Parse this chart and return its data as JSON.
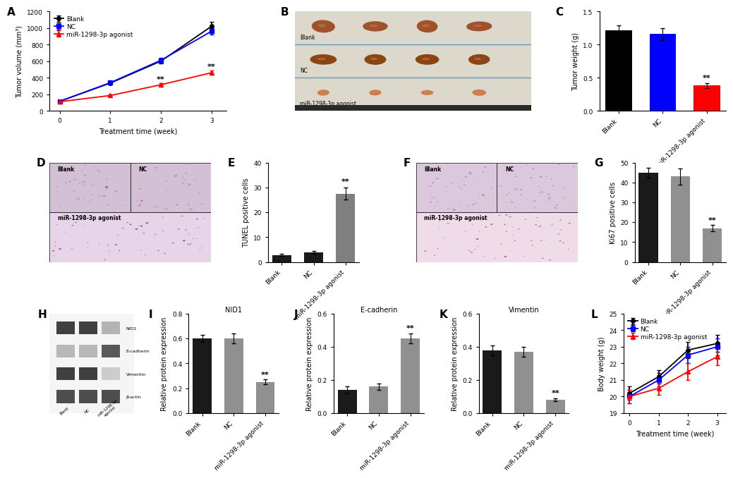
{
  "panel_A": {
    "xlabel": "Treatment time (week)",
    "ylabel": "Tumor volume (mm³)",
    "weeks": [
      0,
      1,
      2,
      3
    ],
    "blank_mean": [
      115,
      335,
      600,
      1020
    ],
    "blank_err": [
      10,
      20,
      25,
      50
    ],
    "NC_mean": [
      115,
      340,
      610,
      960
    ],
    "NC_err": [
      10,
      18,
      30,
      40
    ],
    "mir_mean": [
      110,
      185,
      315,
      460
    ],
    "mir_err": [
      8,
      15,
      20,
      25
    ],
    "ylim": [
      0,
      1200
    ],
    "yticks": [
      0,
      200,
      400,
      600,
      800,
      1000,
      1200
    ],
    "blank_color": "#000000",
    "NC_color": "#0000FF",
    "mir_color": "#FF0000"
  },
  "panel_C": {
    "ylabel": "Tumor weight (g)",
    "categories": [
      "Blank",
      "NC",
      "miR-1298-3p agonist"
    ],
    "means": [
      1.22,
      1.16,
      0.38
    ],
    "errs": [
      0.07,
      0.09,
      0.04
    ],
    "colors": [
      "#000000",
      "#0000FF",
      "#FF0000"
    ],
    "ylim": [
      0,
      1.5
    ],
    "yticks": [
      0.0,
      0.5,
      1.0,
      1.5
    ]
  },
  "panel_E": {
    "ylabel": "TUNEL positive cells",
    "categories": [
      "Blank",
      "NC",
      "miR-1298-3p agonist"
    ],
    "means": [
      2.8,
      3.8,
      27.5
    ],
    "errs": [
      0.5,
      0.6,
      2.5
    ],
    "colors": [
      "#1a1a1a",
      "#1a1a1a",
      "#808080"
    ],
    "ylim": [
      0,
      40
    ],
    "yticks": [
      0,
      10,
      20,
      30,
      40
    ]
  },
  "panel_G": {
    "ylabel": "Ki67 positive cells",
    "categories": [
      "Blank",
      "NC",
      "miR-1298-3p agonist"
    ],
    "means": [
      45,
      43,
      17
    ],
    "errs": [
      2.5,
      4.0,
      1.5
    ],
    "colors": [
      "#1a1a1a",
      "#909090",
      "#909090"
    ],
    "ylim": [
      0,
      50
    ],
    "yticks": [
      0,
      10,
      20,
      30,
      40,
      50
    ]
  },
  "panel_I": {
    "inner_title": "NID1",
    "ylabel": "Relative protein expression",
    "categories": [
      "Blank",
      "NC",
      "miR-1298-3p agonist"
    ],
    "means": [
      0.6,
      0.6,
      0.25
    ],
    "errs": [
      0.03,
      0.04,
      0.02
    ],
    "colors": [
      "#1a1a1a",
      "#909090",
      "#909090"
    ],
    "ylim": [
      0,
      0.8
    ],
    "yticks": [
      0.0,
      0.2,
      0.4,
      0.6,
      0.8
    ]
  },
  "panel_J": {
    "inner_title": "E-cadherin",
    "ylabel": "Relative protein expression",
    "categories": [
      "Blank",
      "NC",
      "miR-1298-3p agonist"
    ],
    "means": [
      0.14,
      0.16,
      0.45
    ],
    "errs": [
      0.02,
      0.02,
      0.03
    ],
    "colors": [
      "#1a1a1a",
      "#909090",
      "#909090"
    ],
    "ylim": [
      0,
      0.6
    ],
    "yticks": [
      0.0,
      0.2,
      0.4,
      0.6
    ]
  },
  "panel_K": {
    "inner_title": "Vimentin",
    "ylabel": "Relative protein expression",
    "categories": [
      "Blank",
      "NC",
      "miR-1298-3p agonist"
    ],
    "means": [
      0.38,
      0.37,
      0.08
    ],
    "errs": [
      0.03,
      0.03,
      0.01
    ],
    "colors": [
      "#1a1a1a",
      "#909090",
      "#909090"
    ],
    "ylim": [
      0,
      0.6
    ],
    "yticks": [
      0.0,
      0.2,
      0.4,
      0.6
    ]
  },
  "panel_L": {
    "xlabel": "Treatment time (week)",
    "ylabel": "Body weight (g)",
    "weeks": [
      0,
      1,
      2,
      3
    ],
    "blank_mean": [
      20.2,
      21.2,
      22.8,
      23.2
    ],
    "blank_err": [
      0.4,
      0.4,
      0.5,
      0.5
    ],
    "NC_mean": [
      20.0,
      21.0,
      22.5,
      23.0
    ],
    "NC_err": [
      0.4,
      0.4,
      0.5,
      0.5
    ],
    "mir_mean": [
      20.0,
      20.5,
      21.5,
      22.4
    ],
    "mir_err": [
      0.4,
      0.4,
      0.5,
      0.5
    ],
    "ylim": [
      19,
      25
    ],
    "yticks": [
      19,
      20,
      21,
      22,
      23,
      24,
      25
    ],
    "blank_color": "#000000",
    "NC_color": "#0000FF",
    "mir_color": "#FF0000"
  },
  "fs_label": 7,
  "fs_tick": 6.5,
  "fs_panel": 11,
  "fs_legend": 6.5,
  "fs_sig": 8
}
